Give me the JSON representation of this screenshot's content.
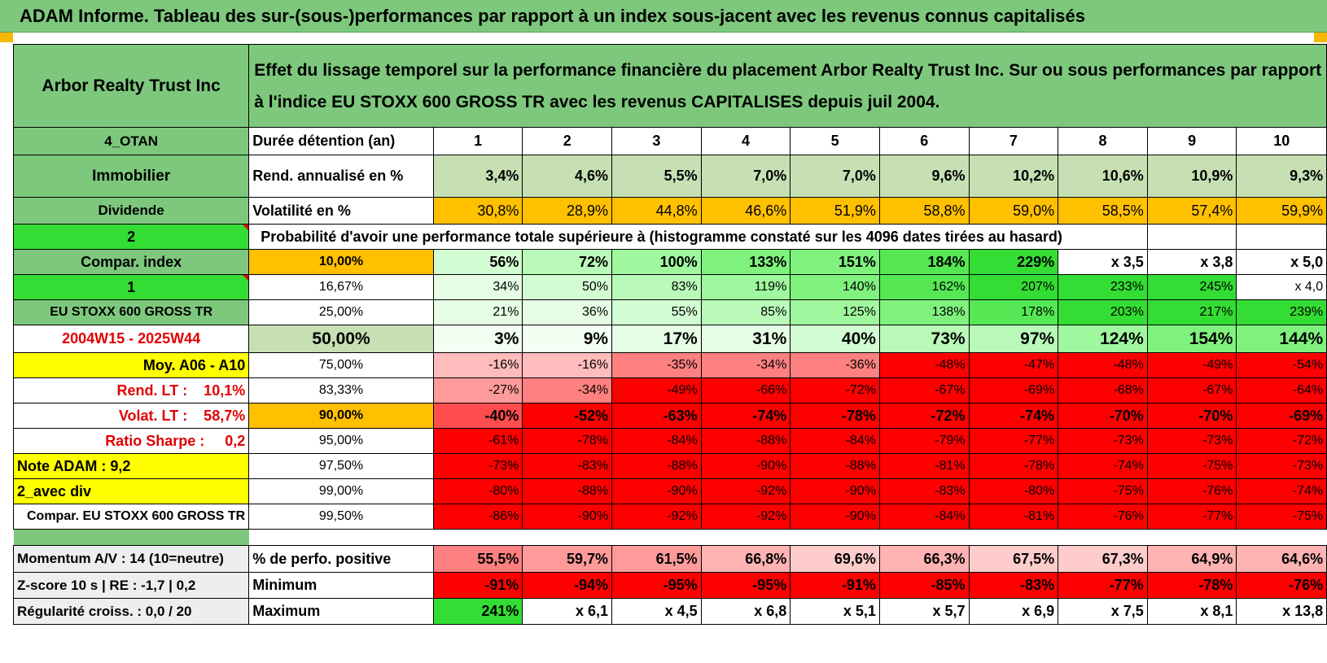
{
  "title": "ADAM Informe. Tableau des sur-(sous-)performances par rapport à un index sous-jacent avec les revenus connus capitalisés",
  "header": {
    "name": "Arbor Realty Trust Inc",
    "description_line1": "Effet du lissage temporel sur la performance financière du placement Arbor Realty Trust Inc. Sur ou sous performances par rapport",
    "description_line2": "à l'indice EU STOXX 600 GROSS TR avec les revenus CAPITALISES depuis juil 2004."
  },
  "left_labels": {
    "code": "4_OTAN",
    "sector": "Immobilier",
    "type": "Dividende",
    "val2": "2",
    "compar_index": "Compar. index",
    "val1": "1",
    "index_name": "EU STOXX 600 GROSS TR",
    "period": "2004W15 - 2025W44",
    "moy": "Moy. A06 - A10",
    "rend_lt": "Rend. LT :    10,1%",
    "volat_lt": "Volat. LT :    58,7%",
    "sharpe": "Ratio Sharpe :     0,2",
    "note": "Note ADAM : 9,2",
    "avec_div": "2_avec div",
    "compar_full": "Compar. EU STOXX 600 GROSS TR",
    "momentum": "Momentum A/V : 14 (10=neutre)",
    "zscore": "Z-score 10 s | RE : -1,7 | 0,2",
    "regularite": "Régularité croiss. : 0,0 / 20"
  },
  "row_labels": {
    "duree": "Durée détention (an)",
    "rend": "Rend. annualisé en %",
    "vol": "Volatilité en %",
    "proba": "Probabilité d'avoir une performance totale supérieure à (histogramme constaté sur les 4096 dates tirées au hasard)",
    "pos": "% de perfo. positive",
    "min": "Minimum",
    "max": "Maximum"
  },
  "years": [
    "1",
    "2",
    "3",
    "4",
    "5",
    "6",
    "7",
    "8",
    "9",
    "10"
  ],
  "rend": [
    "3,4%",
    "4,6%",
    "5,5%",
    "7,0%",
    "7,0%",
    "9,6%",
    "10,2%",
    "10,6%",
    "10,9%",
    "9,3%"
  ],
  "vol": [
    "30,8%",
    "28,9%",
    "44,8%",
    "46,6%",
    "51,9%",
    "58,8%",
    "59,0%",
    "58,5%",
    "57,4%",
    "59,9%"
  ],
  "prob_rows": [
    {
      "pct": "10,00%",
      "values": [
        "56%",
        "72%",
        "100%",
        "133%",
        "151%",
        "184%",
        "229%",
        "x 3,5",
        "x 3,8",
        "x 5,0"
      ]
    },
    {
      "pct": "16,67%",
      "values": [
        "34%",
        "50%",
        "83%",
        "119%",
        "140%",
        "162%",
        "207%",
        "233%",
        "245%",
        "x 4,0"
      ]
    },
    {
      "pct": "25,00%",
      "values": [
        "21%",
        "36%",
        "55%",
        "85%",
        "125%",
        "138%",
        "178%",
        "203%",
        "217%",
        "239%"
      ]
    },
    {
      "pct": "50,00%",
      "values": [
        "3%",
        "9%",
        "17%",
        "31%",
        "40%",
        "73%",
        "97%",
        "124%",
        "154%",
        "144%"
      ]
    },
    {
      "pct": "75,00%",
      "values": [
        "-16%",
        "-16%",
        "-35%",
        "-34%",
        "-36%",
        "-48%",
        "-47%",
        "-48%",
        "-49%",
        "-54%"
      ]
    },
    {
      "pct": "83,33%",
      "values": [
        "-27%",
        "-34%",
        "-49%",
        "-66%",
        "-72%",
        "-67%",
        "-69%",
        "-68%",
        "-67%",
        "-64%"
      ]
    },
    {
      "pct": "90,00%",
      "values": [
        "-40%",
        "-52%",
        "-63%",
        "-74%",
        "-78%",
        "-72%",
        "-74%",
        "-70%",
        "-70%",
        "-69%"
      ]
    },
    {
      "pct": "95,00%",
      "values": [
        "-61%",
        "-78%",
        "-84%",
        "-88%",
        "-84%",
        "-79%",
        "-77%",
        "-73%",
        "-73%",
        "-72%"
      ]
    },
    {
      "pct": "97,50%",
      "values": [
        "-73%",
        "-83%",
        "-88%",
        "-90%",
        "-88%",
        "-81%",
        "-78%",
        "-74%",
        "-75%",
        "-73%"
      ]
    },
    {
      "pct": "99,00%",
      "values": [
        "-80%",
        "-88%",
        "-90%",
        "-92%",
        "-90%",
        "-83%",
        "-80%",
        "-75%",
        "-76%",
        "-74%"
      ]
    },
    {
      "pct": "99,50%",
      "values": [
        "-86%",
        "-90%",
        "-92%",
        "-92%",
        "-90%",
        "-84%",
        "-81%",
        "-76%",
        "-77%",
        "-75%"
      ]
    }
  ],
  "positive": [
    "55,5%",
    "59,7%",
    "61,5%",
    "66,8%",
    "69,6%",
    "66,3%",
    "67,5%",
    "67,3%",
    "64,9%",
    "64,6%"
  ],
  "minimum": [
    "-91%",
    "-94%",
    "-95%",
    "-95%",
    "-91%",
    "-85%",
    "-83%",
    "-77%",
    "-78%",
    "-76%"
  ],
  "maximum": [
    "241%",
    "x 6,1",
    "x 4,5",
    "x 6,8",
    "x 5,1",
    "x 5,7",
    "x 6,9",
    "x 7,5",
    "x 8,1",
    "x 13,8"
  ],
  "colors": {
    "header_green": "#7dc87d",
    "bright_green": "#33dd33",
    "orange": "#ffc000",
    "yellow": "#ffff00",
    "red": "#ff0000",
    "dark_red_text": "#e00000",
    "rend_green": "#c6e0b4"
  }
}
